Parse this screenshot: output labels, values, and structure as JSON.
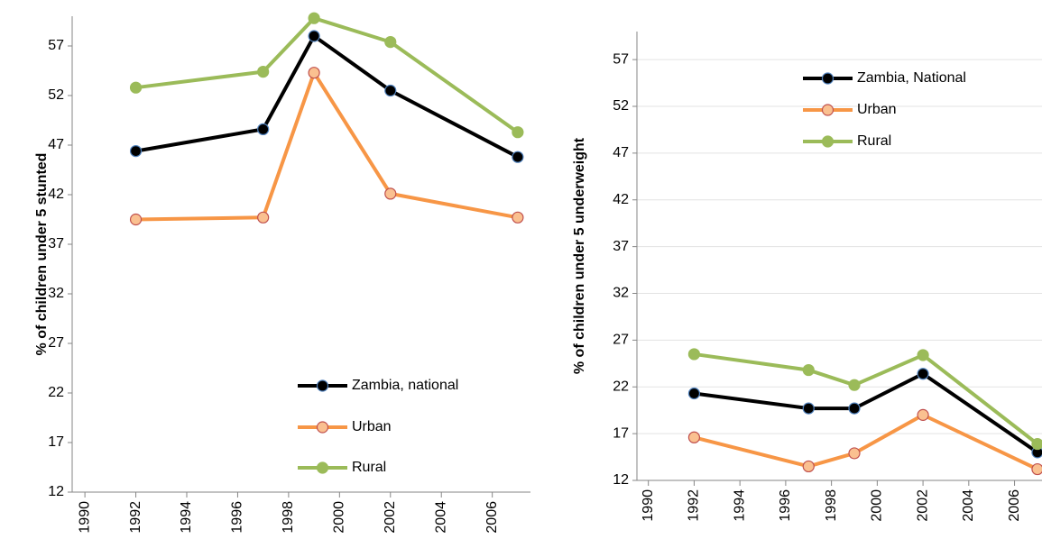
{
  "chart_data": [
    {
      "type": "line",
      "ylabel": "% of children under 5 stunted",
      "x": [
        1992,
        1997,
        1999,
        2002,
        2007
      ],
      "xlim": [
        1989.5,
        2007.5
      ],
      "xticks": [
        1990,
        1992,
        1994,
        1996,
        1998,
        2000,
        2002,
        2004,
        2006
      ],
      "ylim": [
        12,
        60
      ],
      "yticks": [
        12,
        17,
        22,
        27,
        32,
        37,
        42,
        47,
        52,
        57
      ],
      "grid": false,
      "legend": "lower right",
      "series": [
        {
          "name": "Zambia, national",
          "color": "#000000",
          "values": [
            46.4,
            48.6,
            58.0,
            52.5,
            45.8
          ]
        },
        {
          "name": "Urban",
          "color": "#f79646",
          "values": [
            39.5,
            39.7,
            54.3,
            42.1,
            39.7
          ]
        },
        {
          "name": "Rural",
          "color": "#9bbb59",
          "values": [
            52.8,
            54.4,
            59.8,
            57.4,
            48.3
          ]
        }
      ]
    },
    {
      "type": "line",
      "ylabel": "% of children under 5 underweight",
      "x": [
        1992,
        1997,
        1999,
        2002,
        2007
      ],
      "xlim": [
        1989.5,
        2007.2
      ],
      "xticks": [
        1990,
        1992,
        1994,
        1996,
        1998,
        2000,
        2002,
        2004,
        2006
      ],
      "ylim": [
        12,
        60
      ],
      "yticks": [
        12,
        17,
        22,
        27,
        32,
        37,
        42,
        47,
        52,
        57
      ],
      "grid": true,
      "legend": "upper right",
      "series": [
        {
          "name": "Zambia, National",
          "color": "#000000",
          "values": [
            21.3,
            19.7,
            19.7,
            23.4,
            15.0
          ]
        },
        {
          "name": "Urban",
          "color": "#f79646",
          "values": [
            16.6,
            13.5,
            14.9,
            19.0,
            13.2
          ]
        },
        {
          "name": "Rural",
          "color": "#9bbb59",
          "values": [
            25.5,
            23.8,
            22.2,
            25.4,
            15.9
          ]
        }
      ]
    }
  ]
}
